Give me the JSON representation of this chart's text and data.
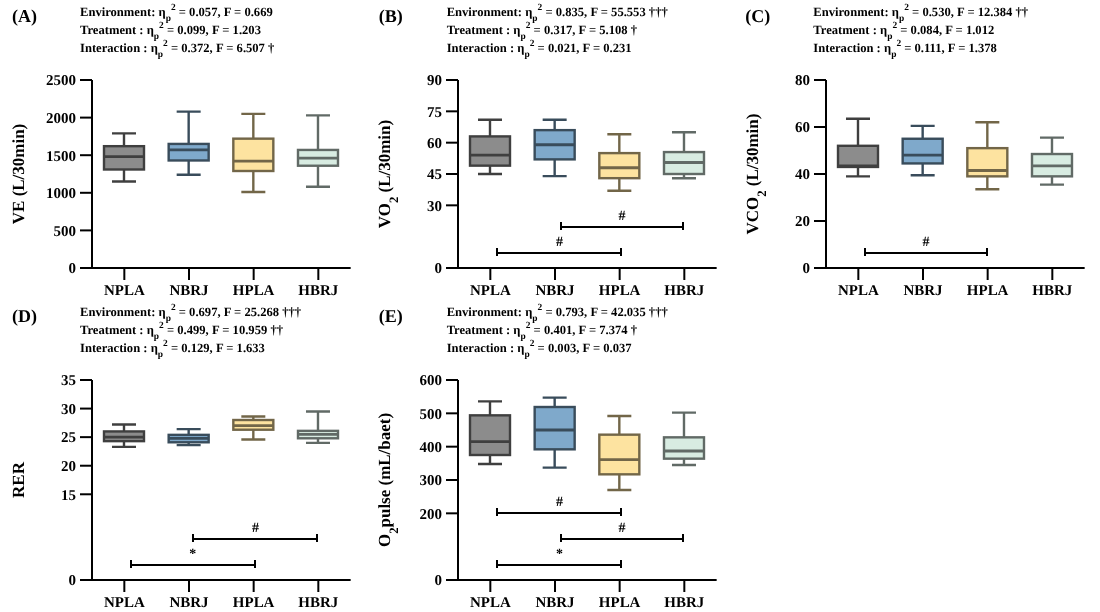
{
  "chart_data": [
    {
      "type": "box",
      "title": "(A)",
      "ylabel": "VE (L/30min)",
      "categories": [
        "NPLA",
        "NBRJ",
        "HPLA",
        "HBRJ"
      ],
      "colors": [
        "#8c8c8c",
        "#7fa9cb",
        "#fde3a0",
        "#d8ece2"
      ],
      "ylim": [
        0,
        2500
      ],
      "yticks": [
        0,
        500,
        1000,
        1500,
        2000,
        2500
      ],
      "annotations": [
        "Environment: η$_{p}$$^{2}$ = 0.057, F = 0.669",
        "Treatment : η$_{p}$$^{2}$ = 0.099, F = 1.203",
        "Interaction : η$_{p}$$^{2}$ = 0.372, F = 6.507 †"
      ],
      "boxes": [
        {
          "low": 1150,
          "q1": 1310,
          "median": 1480,
          "q3": 1620,
          "high": 1790
        },
        {
          "low": 1240,
          "q1": 1430,
          "median": 1570,
          "q3": 1650,
          "high": 2080
        },
        {
          "low": 1010,
          "q1": 1290,
          "median": 1420,
          "q3": 1720,
          "high": 2050
        },
        {
          "low": 1080,
          "q1": 1360,
          "median": 1460,
          "q3": 1570,
          "high": 2030
        }
      ]
    },
    {
      "type": "box",
      "title": "(B)",
      "ylabel": "VO$_{2}$ (L/30min)",
      "categories": [
        "NPLA",
        "NBRJ",
        "HPLA",
        "HBRJ"
      ],
      "colors": [
        "#8c8c8c",
        "#7fa9cb",
        "#fde3a0",
        "#d8ece2"
      ],
      "ylim": [
        0,
        90
      ],
      "yticks": [
        0,
        30,
        45,
        60,
        75,
        90
      ],
      "annotations": [
        "Environment: η$_{p}$$^{2}$ = 0.835, F = 55.553 †††",
        "Treatment : η$_{p}$$^{2}$ = 0.317, F = 5.108 †",
        "Interaction : η$_{p}$$^{2}$ = 0.021, F = 0.231",
        "#",
        "#"
      ],
      "boxes": [
        {
          "low": 45,
          "q1": 49,
          "median": 54,
          "q3": 63,
          "high": 71
        },
        {
          "low": 44,
          "q1": 52,
          "median": 59,
          "q3": 66,
          "high": 71
        },
        {
          "low": 37,
          "q1": 43,
          "median": 48,
          "q3": 55,
          "high": 64
        },
        {
          "low": 43,
          "q1": 45,
          "median": 50.5,
          "q3": 55.5,
          "high": 65
        }
      ]
    },
    {
      "type": "box",
      "title": "(C)",
      "ylabel": "VCO$_{2}$ (L/30min)",
      "categories": [
        "NPLA",
        "NBRJ",
        "HPLA",
        "HBRJ"
      ],
      "colors": [
        "#8c8c8c",
        "#7fa9cb",
        "#fde3a0",
        "#d8ece2"
      ],
      "ylim": [
        0,
        80
      ],
      "yticks": [
        0,
        20,
        40,
        60,
        80
      ],
      "annotations": [
        "Environment: η$_{p}$$^{2}$ = 0.530, F = 12.384 ††",
        "Treatment : η$_{p}$$^{2}$ = 0.084, F = 1.012",
        "Interaction : η$_{p}$$^{2}$ = 0.111, F = 1.378",
        "#"
      ],
      "boxes": [
        {
          "low": 39,
          "q1": 43,
          "median": 43.5,
          "q3": 52,
          "high": 63.5
        },
        {
          "low": 39.5,
          "q1": 44.5,
          "median": 48,
          "q3": 55,
          "high": 60.5
        },
        {
          "low": 33.5,
          "q1": 39,
          "median": 41.5,
          "q3": 51,
          "high": 62
        },
        {
          "low": 35.5,
          "q1": 39,
          "median": 43.5,
          "q3": 48.5,
          "high": 55.5
        }
      ]
    },
    {
      "type": "box",
      "title": "(D)",
      "ylabel": "RER",
      "categories": [
        "NPLA",
        "NBRJ",
        "HPLA",
        "HBRJ"
      ],
      "colors": [
        "#8c8c8c",
        "#7fa9cb",
        "#fde3a0",
        "#d8ece2"
      ],
      "ylim": [
        0,
        35
      ],
      "yticks": [
        0,
        15,
        20,
        25,
        30,
        35
      ],
      "annotations": [
        "Environment: η$_{p}$$^{2}$ = 0.697, F = 25.268 †††",
        "Treatment : η$_{p}$$^{2}$ = 0.499, F = 10.959 ††",
        "Interaction : η$_{p}$$^{2}$ = 0.129, F = 1.633",
        "*",
        "#"
      ],
      "boxes": [
        {
          "low": 23.3,
          "q1": 24.3,
          "median": 25,
          "q3": 26,
          "high": 27.2
        },
        {
          "low": 23.6,
          "q1": 24.1,
          "median": 24.8,
          "q3": 25.4,
          "high": 26.4
        },
        {
          "low": 24.6,
          "q1": 26.3,
          "median": 27,
          "q3": 28,
          "high": 28.6
        },
        {
          "low": 24,
          "q1": 24.8,
          "median": 25.5,
          "q3": 26.1,
          "high": 29.5
        }
      ]
    },
    {
      "type": "box",
      "title": "(E)",
      "ylabel": "O$_{2}$pulse (mL/baet)",
      "categories": [
        "NPLA",
        "NBRJ",
        "HPLA",
        "HBRJ"
      ],
      "colors": [
        "#8c8c8c",
        "#7fa9cb",
        "#fde3a0",
        "#d8ece2"
      ],
      "ylim": [
        0,
        600
      ],
      "yticks": [
        0,
        200,
        300,
        400,
        500,
        600
      ],
      "annotations": [
        "Environment: η$_{p}$$^{2}$ = 0.793, F = 42.035 †††",
        "Treatment : η$_{p}$$^{2}$ = 0.401, F = 7.374 †",
        "Interaction : η$_{p}$$^{2}$ = 0.003, F = 0.037",
        "*",
        "#",
        "#"
      ],
      "boxes": [
        {
          "low": 348,
          "q1": 375,
          "median": 415,
          "q3": 494,
          "high": 536
        },
        {
          "low": 337,
          "q1": 392,
          "median": 450,
          "q3": 519,
          "high": 547
        },
        {
          "low": 270,
          "q1": 317,
          "median": 361,
          "q3": 436,
          "high": 492
        },
        {
          "low": 345,
          "q1": 364,
          "median": 387,
          "q3": 428,
          "high": 502
        }
      ]
    }
  ]
}
